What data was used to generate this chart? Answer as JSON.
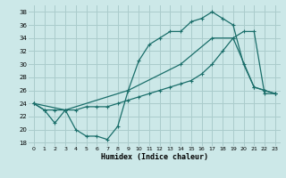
{
  "xlabel": "Humidex (Indice chaleur)",
  "bg_color": "#cce8e8",
  "grid_color": "#aacccc",
  "line_color": "#1a6e6a",
  "xlim": [
    -0.5,
    23.5
  ],
  "ylim": [
    17.5,
    39
  ],
  "yticks": [
    18,
    20,
    22,
    24,
    26,
    28,
    30,
    32,
    34,
    36,
    38
  ],
  "xticks": [
    0,
    1,
    2,
    3,
    4,
    5,
    6,
    7,
    8,
    9,
    10,
    11,
    12,
    13,
    14,
    15,
    16,
    17,
    18,
    19,
    20,
    21,
    22,
    23
  ],
  "line1_x": [
    0,
    1,
    2,
    3,
    4,
    5,
    6,
    7,
    8,
    9,
    10,
    11,
    12,
    13,
    14,
    15,
    16,
    17,
    18,
    19,
    20,
    21,
    22,
    23
  ],
  "line1_y": [
    24,
    23,
    21,
    23,
    20,
    19,
    19,
    18.5,
    20.5,
    26,
    30.5,
    33,
    34,
    35,
    35,
    36.5,
    37,
    38,
    37,
    36,
    30,
    26.5,
    26,
    25.5
  ],
  "line2_x": [
    0,
    1,
    2,
    3,
    4,
    5,
    6,
    7,
    8,
    9,
    10,
    11,
    12,
    13,
    14,
    15,
    16,
    17,
    18,
    19,
    20,
    21,
    22,
    23
  ],
  "line2_y": [
    24,
    23,
    23,
    23,
    23,
    23.5,
    23.5,
    23.5,
    24,
    24.5,
    25,
    25.5,
    26,
    26.5,
    27,
    27.5,
    28.5,
    30,
    32,
    34,
    35,
    35,
    25.5,
    25.5
  ],
  "line3_x": [
    0,
    3,
    9,
    14,
    17,
    19,
    21,
    22,
    23
  ],
  "line3_y": [
    24,
    23,
    26,
    30,
    34,
    34,
    26.5,
    26,
    25.5
  ]
}
